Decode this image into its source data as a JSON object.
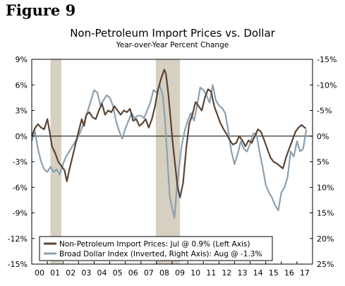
{
  "figure_label": "Figure 9",
  "chart_data": {
    "type": "line",
    "title": "Non-Petroleum Import Prices vs. Dollar",
    "subtitle": "Year-over-Year Percent Change",
    "x_tick_labels": [
      "00",
      "01",
      "02",
      "03",
      "04",
      "05",
      "06",
      "07",
      "08",
      "09",
      "10",
      "11",
      "12",
      "13",
      "14",
      "15",
      "16",
      "17"
    ],
    "x_range": [
      2000.0,
      2018.0
    ],
    "left_axis": {
      "ylim": [
        -15,
        9
      ],
      "ticks": [
        9,
        6,
        3,
        0,
        -3,
        -6,
        -9,
        -12,
        -15
      ],
      "tick_labels": [
        "9%",
        "6%",
        "3%",
        "0%",
        "-3%",
        "-6%",
        "-9%",
        "-12%",
        "-15%"
      ]
    },
    "right_axis": {
      "ylim": [
        25,
        -15
      ],
      "inverted": true,
      "ticks": [
        -15,
        -10,
        -5,
        0,
        5,
        10,
        15,
        20,
        25
      ],
      "tick_labels": [
        "-15%",
        "-10%",
        "-5%",
        "0%",
        "5%",
        "10%",
        "15%",
        "20%",
        "25%"
      ]
    },
    "zero_line": true,
    "grid": false,
    "legend_position": "bottom-left",
    "recession_shading": [
      [
        2001.2,
        2001.9
      ],
      [
        2007.95,
        2009.5
      ]
    ],
    "recession_color": "#d6d0c2",
    "series": [
      {
        "name": "Non-Petroleum Import Prices: Jul @ 0.9% (Left Axis)",
        "axis": "left",
        "color": "#5a4536",
        "x": [
          2000.0,
          2000.2,
          2000.4,
          2000.6,
          2000.8,
          2001.0,
          2001.15,
          2001.3,
          2001.5,
          2001.7,
          2001.9,
          2002.1,
          2002.25,
          2002.4,
          2002.6,
          2002.8,
          2003.0,
          2003.2,
          2003.35,
          2003.5,
          2003.7,
          2003.9,
          2004.1,
          2004.3,
          2004.5,
          2004.7,
          2004.9,
          2005.1,
          2005.3,
          2005.5,
          2005.7,
          2005.9,
          2006.1,
          2006.3,
          2006.5,
          2006.7,
          2006.9,
          2007.1,
          2007.3,
          2007.5,
          2007.7,
          2007.9,
          2008.1,
          2008.3,
          2008.5,
          2008.6,
          2008.75,
          2008.9,
          2009.05,
          2009.2,
          2009.35,
          2009.5,
          2009.7,
          2009.9,
          2010.1,
          2010.3,
          2010.5,
          2010.7,
          2010.9,
          2011.1,
          2011.3,
          2011.5,
          2011.7,
          2011.9,
          2012.1,
          2012.3,
          2012.5,
          2012.7,
          2012.9,
          2013.1,
          2013.3,
          2013.5,
          2013.7,
          2013.9,
          2014.1,
          2014.3,
          2014.5,
          2014.7,
          2014.9,
          2015.1,
          2015.3,
          2015.5,
          2015.7,
          2015.9,
          2016.1,
          2016.3,
          2016.5,
          2016.7,
          2016.9,
          2017.1,
          2017.3,
          2017.5,
          2017.58
        ],
        "values": [
          0.0,
          0.9,
          1.4,
          1.0,
          0.8,
          2.0,
          0.5,
          -1.2,
          -2.0,
          -3.0,
          -3.5,
          -4.0,
          -5.3,
          -4.0,
          -2.5,
          -1.0,
          0.5,
          2.0,
          1.2,
          2.5,
          2.8,
          2.2,
          2.0,
          3.0,
          3.8,
          2.5,
          3.0,
          2.8,
          3.5,
          3.0,
          2.5,
          3.0,
          2.8,
          3.2,
          1.8,
          2.0,
          1.2,
          1.5,
          2.0,
          1.0,
          2.0,
          3.5,
          5.5,
          6.8,
          7.8,
          7.3,
          5.0,
          2.0,
          -1.0,
          -3.5,
          -6.0,
          -7.2,
          -5.5,
          -1.5,
          1.5,
          2.5,
          4.0,
          3.5,
          3.0,
          4.5,
          5.5,
          5.2,
          3.5,
          2.5,
          1.5,
          0.8,
          0.2,
          -0.5,
          -1.0,
          -0.8,
          0.0,
          -0.5,
          -1.2,
          -0.5,
          -0.8,
          0.0,
          0.8,
          0.5,
          -0.5,
          -1.5,
          -2.5,
          -3.0,
          -3.2,
          -3.5,
          -3.8,
          -2.5,
          -1.5,
          -0.5,
          0.5,
          1.0,
          1.3,
          1.0,
          0.9
        ]
      },
      {
        "name": "Broad Dollar Index (Inverted, Right Axis): Aug @ -1.3%",
        "axis": "right",
        "color": "#8da0b0",
        "x": [
          2000.0,
          2000.2,
          2000.4,
          2000.6,
          2000.8,
          2001.0,
          2001.2,
          2001.4,
          2001.6,
          2001.8,
          2002.0,
          2002.2,
          2002.4,
          2002.6,
          2002.8,
          2003.0,
          2003.2,
          2003.4,
          2003.6,
          2003.8,
          2004.0,
          2004.2,
          2004.4,
          2004.6,
          2004.8,
          2005.0,
          2005.2,
          2005.4,
          2005.6,
          2005.8,
          2006.0,
          2006.2,
          2006.4,
          2006.6,
          2006.8,
          2007.0,
          2007.2,
          2007.4,
          2007.6,
          2007.8,
          2008.0,
          2008.2,
          2008.4,
          2008.55,
          2008.7,
          2008.85,
          2009.0,
          2009.15,
          2009.3,
          2009.45,
          2009.6,
          2009.8,
          2010.0,
          2010.2,
          2010.4,
          2010.6,
          2010.8,
          2011.0,
          2011.2,
          2011.4,
          2011.6,
          2011.8,
          2012.0,
          2012.2,
          2012.4,
          2012.6,
          2012.8,
          2013.0,
          2013.2,
          2013.4,
          2013.6,
          2013.8,
          2014.0,
          2014.2,
          2014.4,
          2014.6,
          2014.8,
          2015.0,
          2015.2,
          2015.4,
          2015.6,
          2015.8,
          2016.0,
          2016.2,
          2016.4,
          2016.6,
          2016.8,
          2017.0,
          2017.2,
          2017.4,
          2017.6
        ],
        "values": [
          1.0,
          -1.0,
          2.5,
          5.0,
          6.5,
          7.0,
          6.0,
          7.0,
          6.5,
          7.5,
          5.5,
          4.0,
          3.0,
          2.0,
          1.0,
          0.0,
          -1.5,
          -3.0,
          -5.0,
          -7.0,
          -9.0,
          -8.5,
          -6.0,
          -7.0,
          -8.0,
          -7.5,
          -6.0,
          -3.0,
          -1.0,
          0.5,
          -1.5,
          -3.0,
          -4.5,
          -3.5,
          -4.0,
          -4.0,
          -3.5,
          -5.0,
          -6.5,
          -9.0,
          -8.5,
          -10.0,
          -8.0,
          -3.0,
          5.0,
          12.0,
          14.0,
          16.0,
          10.0,
          6.0,
          2.0,
          -1.0,
          -3.0,
          -4.5,
          -3.0,
          -6.0,
          -9.5,
          -9.0,
          -8.0,
          -6.5,
          -10.0,
          -7.0,
          -6.0,
          -5.5,
          -4.5,
          -1.0,
          3.0,
          5.5,
          3.5,
          1.0,
          2.5,
          3.0,
          1.5,
          -0.5,
          -0.5,
          3.0,
          6.0,
          9.5,
          11.0,
          12.0,
          13.5,
          14.5,
          11.0,
          10.0,
          8.0,
          3.0,
          4.0,
          1.0,
          3.0,
          2.5,
          -1.3
        ]
      }
    ]
  }
}
